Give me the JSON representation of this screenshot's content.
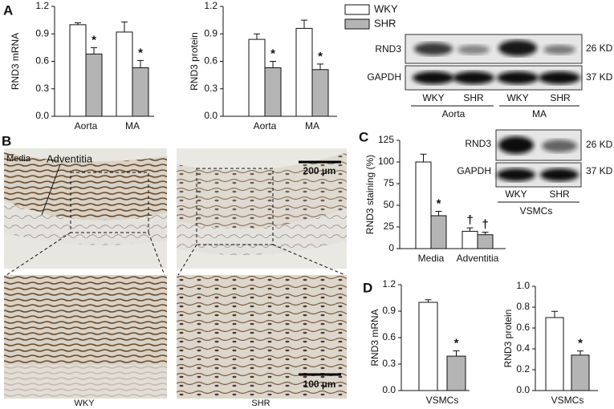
{
  "panels": {
    "a": "A",
    "b": "B",
    "c": "C",
    "d": "D"
  },
  "chart_data": [
    {
      "type": "bar",
      "ylabel": "RND3 mRNA",
      "categories": [
        "Aorta",
        "MA"
      ],
      "series": [
        {
          "name": "WKY",
          "color": "#ffffff",
          "values": [
            1.0,
            0.92
          ],
          "errors": [
            0.02,
            0.11
          ]
        },
        {
          "name": "SHR",
          "color": "#b4b4b4",
          "values": [
            0.68,
            0.53
          ],
          "errors": [
            0.07,
            0.08
          ],
          "markers": [
            "*",
            "*"
          ]
        }
      ],
      "ylim": [
        0,
        1.2
      ],
      "yticks": [
        {
          "value": 0,
          "label": "0.0"
        },
        0.3,
        0.6,
        0.9,
        1.2
      ]
    },
    {
      "type": "bar",
      "ylabel": "RND3 protein",
      "categories": [
        "Aorta",
        "MA"
      ],
      "legend": true,
      "series": [
        {
          "name": "WKY",
          "color": "#ffffff",
          "values": [
            0.84,
            0.96
          ],
          "errors": [
            0.06,
            0.09
          ]
        },
        {
          "name": "SHR",
          "color": "#b4b4b4",
          "values": [
            0.53,
            0.51
          ],
          "errors": [
            0.07,
            0.06
          ],
          "markers": [
            "*",
            "*"
          ]
        }
      ],
      "ylim": [
        0,
        1.2
      ],
      "yticks": [
        {
          "value": 0,
          "label": "0.0"
        },
        0.3,
        0.6,
        0.9,
        1.2
      ]
    },
    {
      "type": "bar",
      "ylabel": "RND3 staining (%)",
      "categories": [
        "Media",
        "Adventitia"
      ],
      "series": [
        {
          "name": "WKY",
          "color": "#ffffff",
          "values": [
            100,
            20
          ],
          "errors": [
            9,
            4
          ],
          "markers": [
            null,
            "†"
          ]
        },
        {
          "name": "SHR",
          "color": "#b4b4b4",
          "values": [
            38,
            16
          ],
          "errors": [
            5,
            3
          ],
          "markers": [
            "*",
            "†"
          ]
        }
      ],
      "ylim": [
        0,
        125
      ],
      "yticks": [
        0,
        25,
        50,
        75,
        100,
        125
      ]
    },
    {
      "type": "bar",
      "ylabel": "RND3 mRNA",
      "categories": [
        "VSMCs"
      ],
      "series": [
        {
          "name": "WKY",
          "color": "#ffffff",
          "values": [
            1.0
          ],
          "errors": [
            0.03
          ]
        },
        {
          "name": "SHR",
          "color": "#b4b4b4",
          "values": [
            0.39
          ],
          "errors": [
            0.06
          ],
          "markers": [
            "*"
          ]
        }
      ],
      "ylim": [
        0,
        1.2
      ],
      "yticks": [
        {
          "value": 0,
          "label": "0.0"
        },
        0.3,
        0.6,
        0.9,
        1.2
      ]
    },
    {
      "type": "bar",
      "ylabel": "RND3 protein",
      "categories": [
        "VSMCs"
      ],
      "series": [
        {
          "name": "WKY",
          "color": "#ffffff",
          "values": [
            0.7
          ],
          "errors": [
            0.06
          ]
        },
        {
          "name": "SHR",
          "color": "#b4b4b4",
          "values": [
            0.34
          ],
          "errors": [
            0.04
          ],
          "markers": [
            "*"
          ]
        }
      ],
      "ylim": [
        0,
        1.0
      ],
      "yticks": [
        {
          "value": 0,
          "label": "0.0"
        },
        0.2,
        0.4,
        0.6,
        0.8,
        {
          "value": 1,
          "label": "1.0"
        }
      ]
    }
  ],
  "blot_a": {
    "rows": [
      "RND3",
      "GAPDH"
    ],
    "sizes": [
      "26 KD",
      "37 KD"
    ],
    "lanes": [
      "WKY",
      "SHR",
      "WKY",
      "SHR"
    ],
    "groups": [
      "Aorta",
      "MA"
    ]
  },
  "blot_c": {
    "rows": [
      "RND3",
      "GAPDH"
    ],
    "sizes": [
      "26 KD",
      "37 KD"
    ],
    "lanes": [
      "WKY",
      "SHR"
    ],
    "groups": [
      "VSMCs"
    ]
  },
  "histology": {
    "layers": [
      "Media",
      "Adventitia"
    ],
    "scale_top": "200 µm",
    "scale_bottom": "100 µm",
    "groups": [
      "WKY",
      "SHR"
    ]
  }
}
